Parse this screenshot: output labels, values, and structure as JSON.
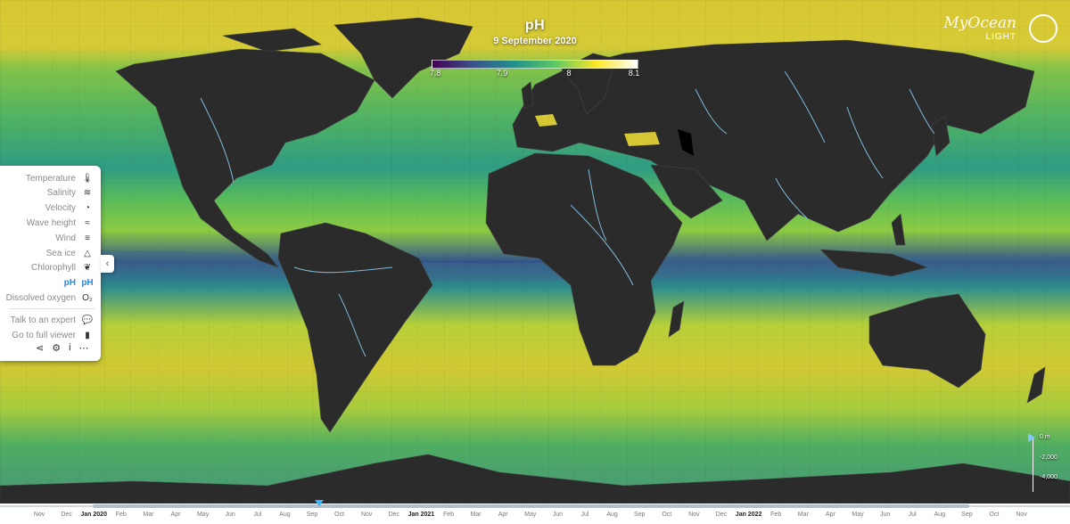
{
  "map": {
    "title": "pH",
    "date": "9 September 2020",
    "colorbar": {
      "ticks": [
        "7.8",
        "7.9",
        "8",
        "8.1"
      ],
      "colors": [
        "#440154",
        "#3b528b",
        "#21918c",
        "#5ec962",
        "#fde725",
        "#ffffff"
      ]
    },
    "land_color": "#2b2b2b",
    "river_color": "#8fd3f4"
  },
  "logo": {
    "name": "MyOcean",
    "variant": "LIGHT",
    "icon": "myocean-logo-icon"
  },
  "sidebar": {
    "items": [
      {
        "label": "Temperature",
        "icon": "thermometer-icon",
        "glyph": "🌡",
        "active": false
      },
      {
        "label": "Salinity",
        "icon": "salinity-icon",
        "glyph": "≋",
        "active": false
      },
      {
        "label": "Velocity",
        "icon": "speedometer-icon",
        "glyph": "◔",
        "active": false
      },
      {
        "label": "Wave height",
        "icon": "wave-icon",
        "glyph": "≈",
        "active": false
      },
      {
        "label": "Wind",
        "icon": "wind-icon",
        "glyph": "≡",
        "active": false
      },
      {
        "label": "Sea ice",
        "icon": "sea-ice-icon",
        "glyph": "△",
        "active": false
      },
      {
        "label": "Chlorophyll",
        "icon": "leaf-icon",
        "glyph": "❦",
        "active": false
      },
      {
        "label": "pH",
        "icon": "ph-icon",
        "glyph": "pH",
        "active": true
      },
      {
        "label": "Dissolved oxygen",
        "icon": "oxygen-icon",
        "glyph": "O₂",
        "active": false
      }
    ],
    "actions": [
      {
        "label": "Talk to an expert",
        "icon": "chat-icon",
        "glyph": "💬"
      },
      {
        "label": "Go to full viewer",
        "icon": "viewer-icon",
        "glyph": "▮"
      }
    ],
    "tools": [
      {
        "icon": "share-icon",
        "glyph": "⋖"
      },
      {
        "icon": "gear-icon",
        "glyph": "⚙"
      },
      {
        "icon": "info-icon",
        "glyph": "i"
      },
      {
        "icon": "more-icon",
        "glyph": "⋯"
      }
    ],
    "collapse_glyph": "‹"
  },
  "depth": {
    "labels": [
      "0 m",
      "-2,000",
      "-4,000"
    ]
  },
  "timeline": {
    "months": [
      "Nov",
      "Dec",
      "Jan 2020",
      "Feb",
      "Mar",
      "Apr",
      "May",
      "Jun",
      "Jul",
      "Aug",
      "Sep",
      "Oct",
      "Nov",
      "Dec",
      "Jan 2021",
      "Feb",
      "Mar",
      "Apr",
      "May",
      "Jun",
      "Jul",
      "Aug",
      "Sep",
      "Oct",
      "Nov",
      "Dec",
      "Jan 2022",
      "Feb",
      "Mar",
      "Apr",
      "May",
      "Jun",
      "Jul",
      "Aug",
      "Sep",
      "Oct",
      "Nov"
    ],
    "selected": "9 September 2020"
  }
}
